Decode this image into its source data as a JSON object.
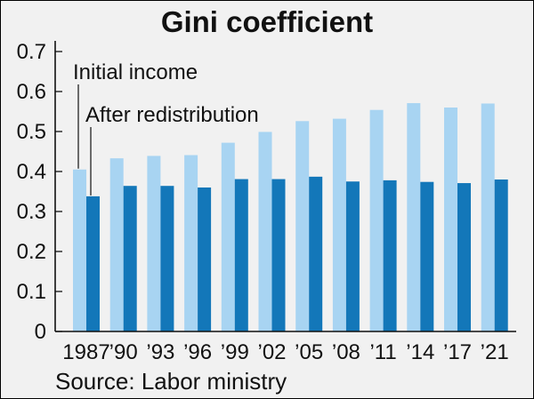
{
  "chart_data": {
    "type": "bar",
    "title": "Gini coefficient",
    "source": "Source: Labor ministry",
    "categories": [
      "1987",
      "’90",
      "’93",
      "’96",
      "’99",
      "’02",
      "’05",
      "’08",
      "’11",
      "’14",
      "’17",
      "’21"
    ],
    "series": [
      {
        "name": "Initial income",
        "color": "#a8d4f2",
        "values": [
          0.405,
          0.433,
          0.439,
          0.441,
          0.472,
          0.499,
          0.526,
          0.532,
          0.554,
          0.571,
          0.56,
          0.57
        ]
      },
      {
        "name": "After redistribution",
        "color": "#1377b9",
        "values": [
          0.338,
          0.364,
          0.364,
          0.36,
          0.381,
          0.381,
          0.387,
          0.375,
          0.378,
          0.374,
          0.371,
          0.38
        ]
      }
    ],
    "ylim": [
      0,
      0.7
    ],
    "yticks": [
      "0",
      "0.1",
      "0.2",
      "0.3",
      "0.4",
      "0.5",
      "0.6",
      "0.7"
    ],
    "xlabel": "",
    "ylabel": "",
    "grid": false,
    "legend": "inline-callouts"
  }
}
